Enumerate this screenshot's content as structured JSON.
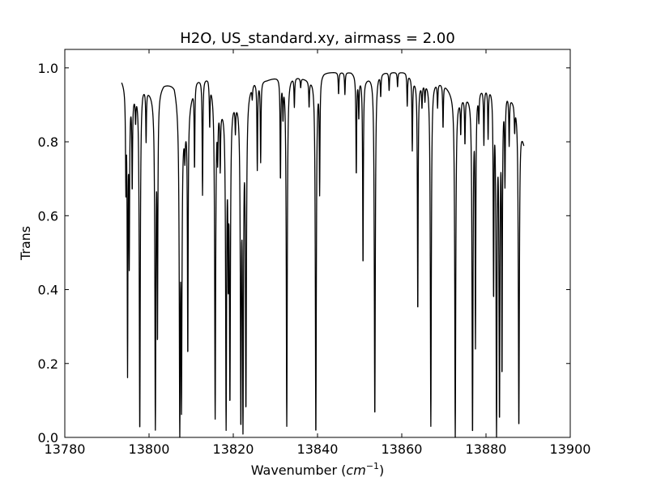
{
  "chart_data": {
    "type": "line",
    "title": "H2O, US_standard.xy, airmass = 2.00",
    "xlabel": "Wavenumber",
    "xlabel_unit": "cm",
    "xlabel_unit_exp": "−1",
    "ylabel": "Trans",
    "xlim": [
      13780,
      13900
    ],
    "ylim": [
      0.0,
      1.05
    ],
    "xticks": [
      "13780",
      "13800",
      "13820",
      "13840",
      "13860",
      "13880",
      "13900"
    ],
    "yticks": [
      "0.0",
      "0.2",
      "0.4",
      "0.6",
      "0.8",
      "1.0"
    ],
    "xtick_values": [
      13780,
      13800,
      13820,
      13840,
      13860,
      13880,
      13900
    ],
    "ytick_values": [
      0.0,
      0.2,
      0.4,
      0.6,
      0.8,
      1.0
    ],
    "line_color": "#000000",
    "grid": false,
    "series": [
      {
        "x_range": [
          13793.5,
          13889.0
        ],
        "baseline": [
          [
            13793.5,
            0.97
          ],
          [
            13796.0,
            0.93
          ],
          [
            13798.5,
            0.96
          ],
          [
            13801.0,
            0.93
          ],
          [
            13803.5,
            0.96
          ],
          [
            13806.0,
            0.96
          ],
          [
            13808.5,
            0.85
          ],
          [
            13811.0,
            0.97
          ],
          [
            13814.0,
            0.98
          ],
          [
            13817.0,
            0.9
          ],
          [
            13819.5,
            0.92
          ],
          [
            13822.0,
            0.93
          ],
          [
            13825.0,
            0.97
          ],
          [
            13828.0,
            0.97
          ],
          [
            13831.0,
            0.98
          ],
          [
            13834.5,
            0.98
          ],
          [
            13838.0,
            0.97
          ],
          [
            13841.5,
            0.99
          ],
          [
            13845.0,
            0.99
          ],
          [
            13848.0,
            0.99
          ],
          [
            13851.0,
            0.97
          ],
          [
            13854.5,
            0.99
          ],
          [
            13858.0,
            0.99
          ],
          [
            13861.0,
            0.99
          ],
          [
            13864.0,
            0.96
          ],
          [
            13867.0,
            0.97
          ],
          [
            13870.0,
            0.96
          ],
          [
            13873.0,
            0.92
          ],
          [
            13876.0,
            0.93
          ],
          [
            13879.0,
            0.95
          ],
          [
            13882.0,
            0.96
          ],
          [
            13885.0,
            0.94
          ],
          [
            13887.5,
            0.9
          ],
          [
            13889.0,
            0.8
          ]
        ],
        "absorption_lines": [
          [
            13794.5,
            0.69
          ],
          [
            13794.9,
            0.17
          ],
          [
            13795.3,
            0.48
          ],
          [
            13796.0,
            0.68
          ],
          [
            13796.8,
            0.87
          ],
          [
            13797.8,
            0.01
          ],
          [
            13799.3,
            0.81
          ],
          [
            13801.5,
            0.02
          ],
          [
            13802.0,
            0.26
          ],
          [
            13807.3,
            0.0
          ],
          [
            13807.7,
            0.07
          ],
          [
            13808.5,
            0.78
          ],
          [
            13809.2,
            0.21
          ],
          [
            13810.8,
            0.73
          ],
          [
            13812.7,
            0.66
          ],
          [
            13814.4,
            0.85
          ],
          [
            13815.7,
            0.05
          ],
          [
            13816.3,
            0.78
          ],
          [
            13816.9,
            0.74
          ],
          [
            13818.3,
            0.02
          ],
          [
            13818.8,
            0.45
          ],
          [
            13819.2,
            0.09
          ],
          [
            13820.5,
            0.85
          ],
          [
            13821.8,
            0.02
          ],
          [
            13822.3,
            0.01
          ],
          [
            13823.0,
            0.07
          ],
          [
            13824.5,
            0.93
          ],
          [
            13825.7,
            0.73
          ],
          [
            13826.5,
            0.75
          ],
          [
            13831.2,
            0.7
          ],
          [
            13831.8,
            0.88
          ],
          [
            13832.7,
            0.03
          ],
          [
            13834.5,
            0.9
          ],
          [
            13836.0,
            0.95
          ],
          [
            13838.0,
            0.9
          ],
          [
            13839.6,
            0.0
          ],
          [
            13840.5,
            0.67
          ],
          [
            13845.0,
            0.93
          ],
          [
            13846.5,
            0.93
          ],
          [
            13849.2,
            0.71
          ],
          [
            13849.8,
            0.87
          ],
          [
            13850.8,
            0.46
          ],
          [
            13853.6,
            0.05
          ],
          [
            13855.0,
            0.93
          ],
          [
            13857.0,
            0.94
          ],
          [
            13859.0,
            0.95
          ],
          [
            13861.3,
            0.9
          ],
          [
            13862.5,
            0.78
          ],
          [
            13863.8,
            0.33
          ],
          [
            13864.8,
            0.9
          ],
          [
            13865.5,
            0.92
          ],
          [
            13866.9,
            0.03
          ],
          [
            13868.5,
            0.9
          ],
          [
            13869.8,
            0.84
          ],
          [
            13872.7,
            0.0
          ],
          [
            13874.0,
            0.83
          ],
          [
            13875.0,
            0.8
          ],
          [
            13876.8,
            0.0
          ],
          [
            13877.5,
            0.25
          ],
          [
            13878.3,
            0.87
          ],
          [
            13879.5,
            0.8
          ],
          [
            13880.5,
            0.82
          ],
          [
            13881.8,
            0.38
          ],
          [
            13882.5,
            0.0
          ],
          [
            13883.2,
            0.04
          ],
          [
            13883.8,
            0.16
          ],
          [
            13884.5,
            0.7
          ],
          [
            13885.5,
            0.8
          ],
          [
            13886.8,
            0.84
          ],
          [
            13887.8,
            0.02
          ]
        ]
      }
    ]
  }
}
